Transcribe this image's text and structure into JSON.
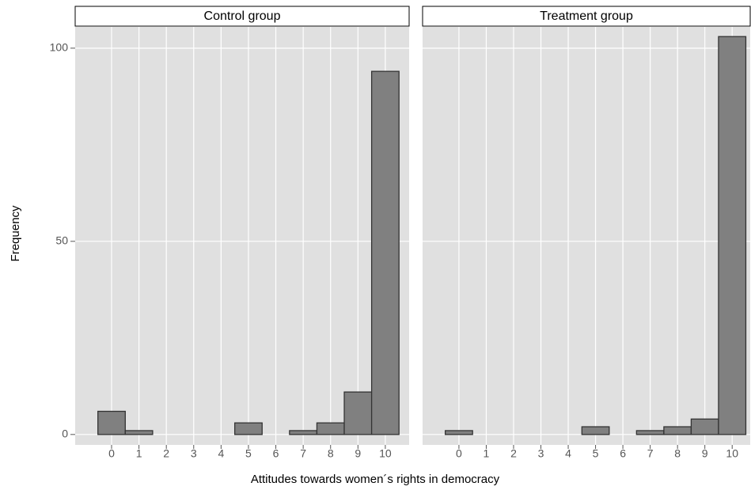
{
  "axis_labels": {
    "x": "Attitudes towards women´s rights in democracy",
    "y": "Frequency"
  },
  "chart_data": [
    {
      "type": "histogram",
      "title": "Control group",
      "bins": [
        -0.5,
        0.5,
        1.5,
        2.5,
        3.5,
        4.5,
        5.5,
        6.5,
        7.5,
        8.5,
        9.5,
        10.5
      ],
      "values": [
        6,
        1,
        0,
        0,
        0,
        3,
        0,
        1,
        3,
        11,
        94
      ],
      "color": "#808080",
      "xlim": [
        -1.33,
        10.87
      ],
      "xticks": [
        0,
        1,
        2,
        3,
        4,
        5,
        6,
        7,
        8,
        9,
        10
      ],
      "ylim": [
        -2.7,
        105.5
      ],
      "yticks": [
        0,
        50,
        100
      ],
      "grid": true
    },
    {
      "type": "histogram",
      "title": "Treatment group",
      "bins": [
        -0.5,
        0.5,
        1.5,
        2.5,
        3.5,
        4.5,
        5.5,
        6.5,
        7.5,
        8.5,
        9.5,
        10.5
      ],
      "values": [
        1,
        0,
        0,
        0,
        0,
        2,
        0,
        1,
        2,
        4,
        103
      ],
      "color": "#808080",
      "xlim": [
        -1.33,
        10.66
      ],
      "xticks": [
        0,
        1,
        2,
        3,
        4,
        5,
        6,
        7,
        8,
        9,
        10
      ],
      "ylim": [
        -2.7,
        105.5
      ],
      "yticks": [
        0,
        50,
        100
      ],
      "grid": true
    }
  ]
}
